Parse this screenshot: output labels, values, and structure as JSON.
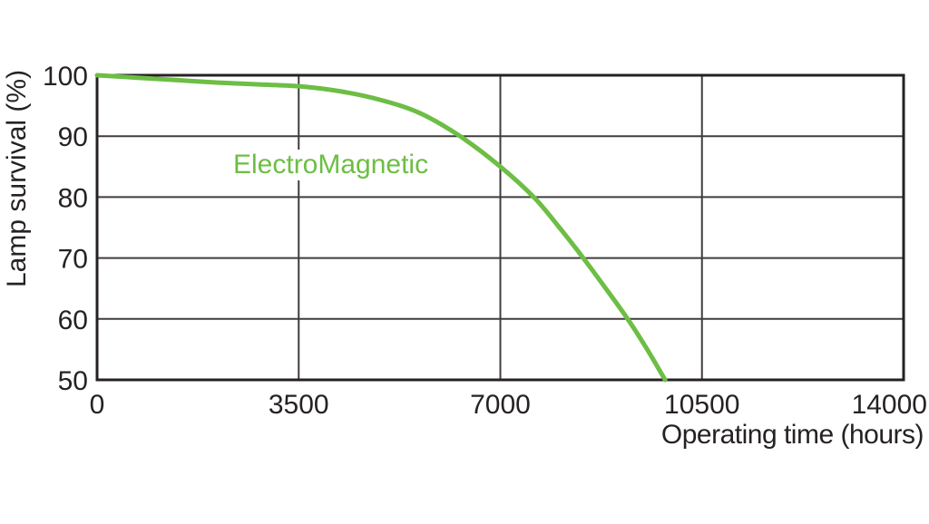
{
  "chart_data": {
    "type": "line",
    "title": "",
    "xlabel": "Operating time (hours)",
    "ylabel": "Lamp survival (%)",
    "xlim": [
      0,
      14000
    ],
    "ylim": [
      50,
      100
    ],
    "x_ticks": [
      "0",
      "3500",
      "7000",
      "10500",
      "14000"
    ],
    "x_tick_values": [
      0,
      3500,
      7000,
      10500,
      14000
    ],
    "y_ticks": [
      "100",
      "90",
      "80",
      "70",
      "60",
      "50"
    ],
    "y_tick_values": [
      100,
      90,
      80,
      70,
      60,
      50
    ],
    "grid": true,
    "legend_position": "inline-label",
    "series": [
      {
        "name": "ElectroMagnetic",
        "color": "#6cbe44",
        "points": [
          [
            0,
            100
          ],
          [
            700,
            99.6
          ],
          [
            1400,
            99.2
          ],
          [
            2100,
            98.8
          ],
          [
            2800,
            98.5
          ],
          [
            3500,
            98.2
          ],
          [
            4200,
            97.4
          ],
          [
            4900,
            96.0
          ],
          [
            5600,
            93.8
          ],
          [
            6300,
            90.0
          ],
          [
            7000,
            85.0
          ],
          [
            7580,
            80.0
          ],
          [
            8000,
            75.3
          ],
          [
            8440,
            70.0
          ],
          [
            8830,
            65.0
          ],
          [
            9210,
            60.0
          ],
          [
            9550,
            55.0
          ],
          [
            9860,
            50.0
          ]
        ]
      }
    ],
    "colors": {
      "axis": "#262223",
      "grid": "#403d3e",
      "text": "#262223",
      "background": "#ffffff"
    }
  }
}
